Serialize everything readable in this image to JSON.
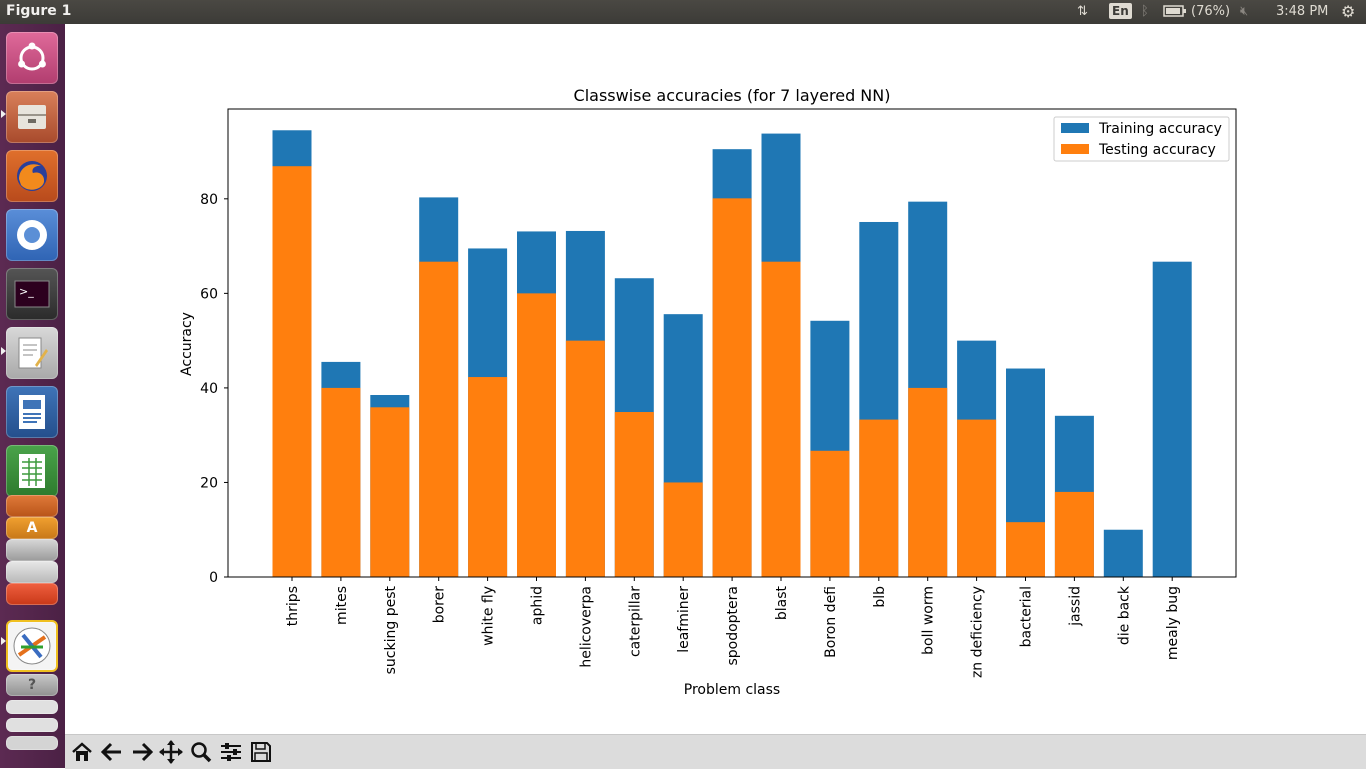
{
  "window": {
    "title": "Figure 1"
  },
  "system_tray": {
    "language": "En",
    "battery": "(76%)",
    "time": "3:48 PM",
    "icons": [
      "network-arrows-icon",
      "keyboard-language-icon",
      "bluetooth-icon",
      "battery-icon",
      "volume-muted-icon",
      "system-gear-icon"
    ]
  },
  "launcher": {
    "items": [
      "ubuntu-dash-icon",
      "files-icon",
      "firefox-icon",
      "chromium-icon",
      "terminal-icon",
      "text-editor-icon",
      "writer-icon",
      "calc-icon",
      "impress-icon",
      "amazon-icon",
      "settings-icon",
      "help-icon",
      "trash-icon"
    ]
  },
  "toolbar": {
    "tools": [
      "home-icon",
      "back-icon",
      "forward-icon",
      "pan-icon",
      "zoom-icon",
      "subplots-icon",
      "save-icon"
    ]
  },
  "colors": {
    "training": "#1f77b4",
    "testing": "#ff7f0e"
  },
  "chart_data": {
    "type": "bar",
    "title": "Classwise accuracies (for 7 layered NN)",
    "xlabel": "Problem class",
    "ylabel": "Accuracy",
    "ylim": [
      0,
      99
    ],
    "yticks": [
      0,
      20,
      40,
      60,
      80
    ],
    "grid": false,
    "legend_position": "top-right",
    "categories": [
      "thrips",
      "mites",
      "sucking pest",
      "borer",
      "white fly",
      "aphid",
      "helicoverpa",
      "caterpillar",
      "leafminer",
      "spodoptera",
      "blast",
      "Boron defi",
      "blb",
      "boll worm",
      "zn deficiency",
      "bacterial",
      "jassid",
      "die back",
      "mealy bug"
    ],
    "series": [
      {
        "name": "Training accuracy",
        "values": [
          94.5,
          45.5,
          38.5,
          80.3,
          69.5,
          73.1,
          73.2,
          63.2,
          55.6,
          90.5,
          93.8,
          54.2,
          75.1,
          79.4,
          50.0,
          44.1,
          34.1,
          10.0,
          66.7
        ]
      },
      {
        "name": "Testing accuracy",
        "values": [
          86.9,
          40.0,
          35.9,
          66.7,
          42.3,
          60.0,
          50.0,
          34.9,
          20.0,
          80.1,
          66.7,
          26.7,
          33.3,
          40.0,
          33.3,
          11.6,
          18.0,
          0,
          0
        ]
      }
    ]
  }
}
